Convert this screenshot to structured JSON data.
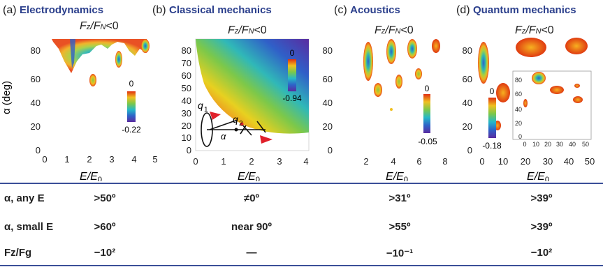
{
  "panels": [
    {
      "label": "(a)",
      "title": "Electrodynamics",
      "condition": "F",
      "xticks": [
        "0",
        "1",
        "2",
        "3",
        "4",
        "5"
      ],
      "yticks": [
        "0",
        "20",
        "40",
        "60",
        "80"
      ],
      "xlabel": "E/E",
      "ylabel": "α (deg)",
      "colorbar_top": "0",
      "colorbar_bottom": "-0.22"
    },
    {
      "label": "(b)",
      "title": "Classical mechanics",
      "xticks": [
        "0",
        "1",
        "2",
        "3",
        "4"
      ],
      "yticks": [
        "0",
        "10",
        "20",
        "30",
        "40",
        "50",
        "60",
        "70",
        "80"
      ],
      "colorbar_top": "0",
      "colorbar_bottom": "-0.94",
      "diagram_labels": [
        "q",
        "1",
        "q",
        "2",
        "α"
      ]
    },
    {
      "label": "(c)",
      "title": "Acoustics",
      "xticks": [
        "2",
        "4",
        "6",
        "8"
      ],
      "yticks": [
        "0",
        "20",
        "40",
        "60",
        "80"
      ],
      "colorbar_top": "0",
      "colorbar_bottom": "-0.05"
    },
    {
      "label": "(d)",
      "title": "Quantum mechanics",
      "xticks": [
        "0",
        "10",
        "20",
        "30",
        "40",
        "50"
      ],
      "yticks": [
        "0",
        "20",
        "40",
        "60",
        "80"
      ],
      "colorbar_top": "0",
      "colorbar_bottom": "-0.18",
      "inset_xticks": [
        "0",
        "10",
        "20",
        "30",
        "40",
        "50"
      ],
      "inset_yticks": [
        "0",
        "20",
        "40",
        "60",
        "80"
      ]
    }
  ],
  "condition": {
    "F": "F",
    "z": "z",
    "slash": "/F",
    "N": "N",
    "lt": "<0"
  },
  "xlabel": {
    "E": "E/E",
    "sub": "0"
  },
  "ylabel": "α (deg)",
  "table": {
    "rows": [
      {
        "label": "α, any E",
        "values": [
          ">50º",
          "≠0º",
          ">31º",
          ">39º"
        ]
      },
      {
        "label": "α, small E",
        "values": [
          ">60º",
          "near 90º",
          ">55º",
          ">39º"
        ]
      },
      {
        "label": "Fz/Fg",
        "values": [
          "−10²",
          "—",
          "−10⁻¹",
          "−10²"
        ]
      }
    ]
  },
  "colors": {
    "accent": "#3a4f98",
    "title": "#2b3f8c",
    "arrow": "#e0202a"
  }
}
